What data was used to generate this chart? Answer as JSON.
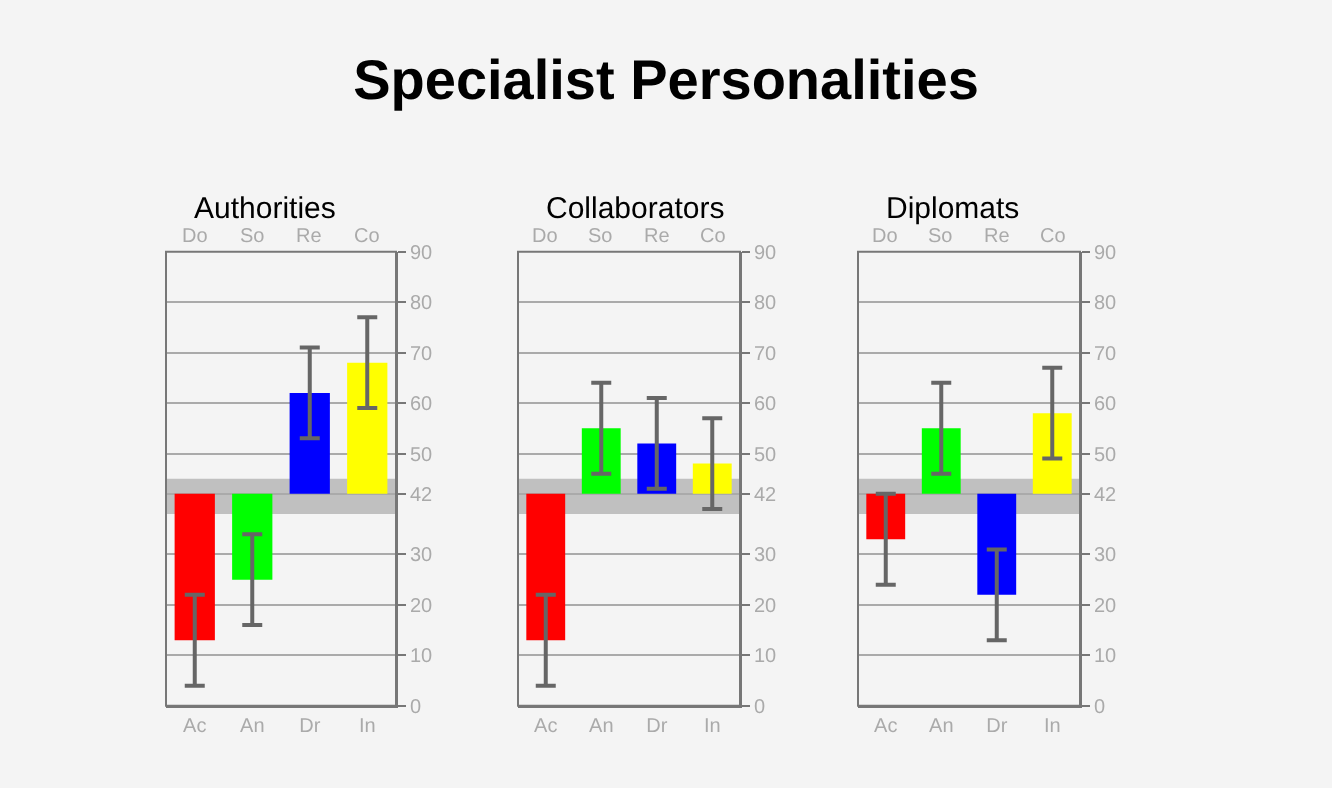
{
  "chart_data": [
    {
      "type": "bar",
      "subtitle": "Authorities",
      "categories": [
        "Ac",
        "An",
        "Dr",
        "In"
      ],
      "base": [
        42,
        42,
        42,
        42
      ],
      "values": [
        -29,
        -17,
        20,
        26
      ],
      "errors": [
        9,
        9,
        9,
        9
      ],
      "colors": [
        "#ff0000",
        "#00ff00",
        "#0000ff",
        "#ffff00"
      ],
      "ylim": [
        0,
        90
      ],
      "yticks": [
        0,
        10,
        20,
        30,
        42,
        50,
        60,
        70,
        80,
        90
      ],
      "annotations": [
        "Do",
        "So",
        "Re",
        "Co"
      ],
      "bands": [
        {
          "axis": "y",
          "from": 38,
          "to": 45,
          "color": "#c0c0c0"
        }
      ],
      "grid": "y"
    },
    {
      "type": "bar",
      "title": "Specialist Personalities",
      "subtitle": "Collaborators",
      "categories": [
        "Ac",
        "An",
        "Dr",
        "In"
      ],
      "base": [
        42,
        42,
        42,
        42
      ],
      "values": [
        -29,
        13,
        10,
        6
      ],
      "errors": [
        9,
        9,
        9,
        9
      ],
      "colors": [
        "#ff0000",
        "#00ff00",
        "#0000ff",
        "#ffff00"
      ],
      "ylim": [
        0,
        90
      ],
      "yticks": [
        0,
        10,
        20,
        30,
        42,
        50,
        60,
        70,
        80,
        90
      ],
      "annotations": [
        "Do",
        "So",
        "Re",
        "Co"
      ],
      "bands": [
        {
          "axis": "y",
          "from": 38,
          "to": 45,
          "color": "#c0c0c0"
        }
      ],
      "grid": "y"
    },
    {
      "type": "bar",
      "subtitle": "Diplomats",
      "categories": [
        "Ac",
        "An",
        "Dr",
        "In"
      ],
      "base": [
        42,
        42,
        42,
        42
      ],
      "values": [
        -9,
        13,
        -20,
        16
      ],
      "errors": [
        9,
        9,
        9,
        9
      ],
      "colors": [
        "#ff0000",
        "#00ff00",
        "#0000ff",
        "#ffff00"
      ],
      "ylim": [
        0,
        90
      ],
      "yticks": [
        0,
        10,
        20,
        30,
        42,
        50,
        60,
        70,
        80,
        90
      ],
      "annotations": [
        "Do",
        "So",
        "Re",
        "Co"
      ],
      "bands": [
        {
          "axis": "y",
          "from": 38,
          "to": 45,
          "color": "#c0c0c0"
        }
      ],
      "grid": "y"
    }
  ]
}
